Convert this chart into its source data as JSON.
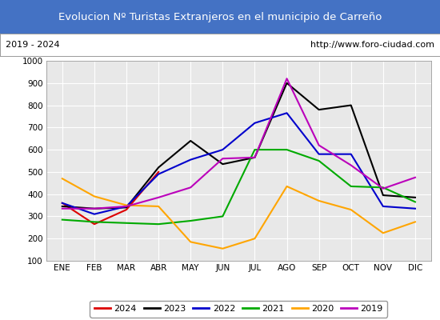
{
  "title": "Evolucion Nº Turistas Extranjeros en el municipio de Carreño",
  "subtitle_left": "2019 - 2024",
  "subtitle_right": "http://www.foro-ciudad.com",
  "months": [
    "ENE",
    "FEB",
    "MAR",
    "ABR",
    "MAY",
    "JUN",
    "JUL",
    "AGO",
    "SEP",
    "OCT",
    "NOV",
    "DIC"
  ],
  "ylim": [
    100,
    1000
  ],
  "yticks": [
    100,
    200,
    300,
    400,
    500,
    600,
    700,
    800,
    900,
    1000
  ],
  "series": {
    "2024": {
      "color": "#dd0000",
      "data": [
        360,
        265,
        330,
        500,
        null,
        null,
        null,
        null,
        null,
        null,
        null,
        null
      ]
    },
    "2023": {
      "color": "#000000",
      "data": [
        345,
        335,
        340,
        520,
        640,
        535,
        565,
        900,
        780,
        800,
        395,
        385
      ]
    },
    "2022": {
      "color": "#0000cc",
      "data": [
        360,
        310,
        345,
        490,
        555,
        600,
        720,
        765,
        580,
        580,
        345,
        335
      ]
    },
    "2021": {
      "color": "#00aa00",
      "data": [
        285,
        275,
        270,
        265,
        280,
        300,
        600,
        600,
        550,
        435,
        430,
        365
      ]
    },
    "2020": {
      "color": "#ffa500",
      "data": [
        470,
        390,
        350,
        345,
        185,
        155,
        200,
        435,
        370,
        330,
        225,
        275
      ]
    },
    "2019": {
      "color": "#bb00bb",
      "data": [
        335,
        335,
        345,
        385,
        430,
        560,
        565,
        920,
        620,
        530,
        425,
        475
      ]
    }
  },
  "title_bg": "#4472c4",
  "title_color": "#ffffff",
  "plot_bg": "#e8e8e8",
  "grid_color": "#ffffff",
  "fig_bg": "#ffffff",
  "legend_order": [
    "2024",
    "2023",
    "2022",
    "2021",
    "2020",
    "2019"
  ]
}
